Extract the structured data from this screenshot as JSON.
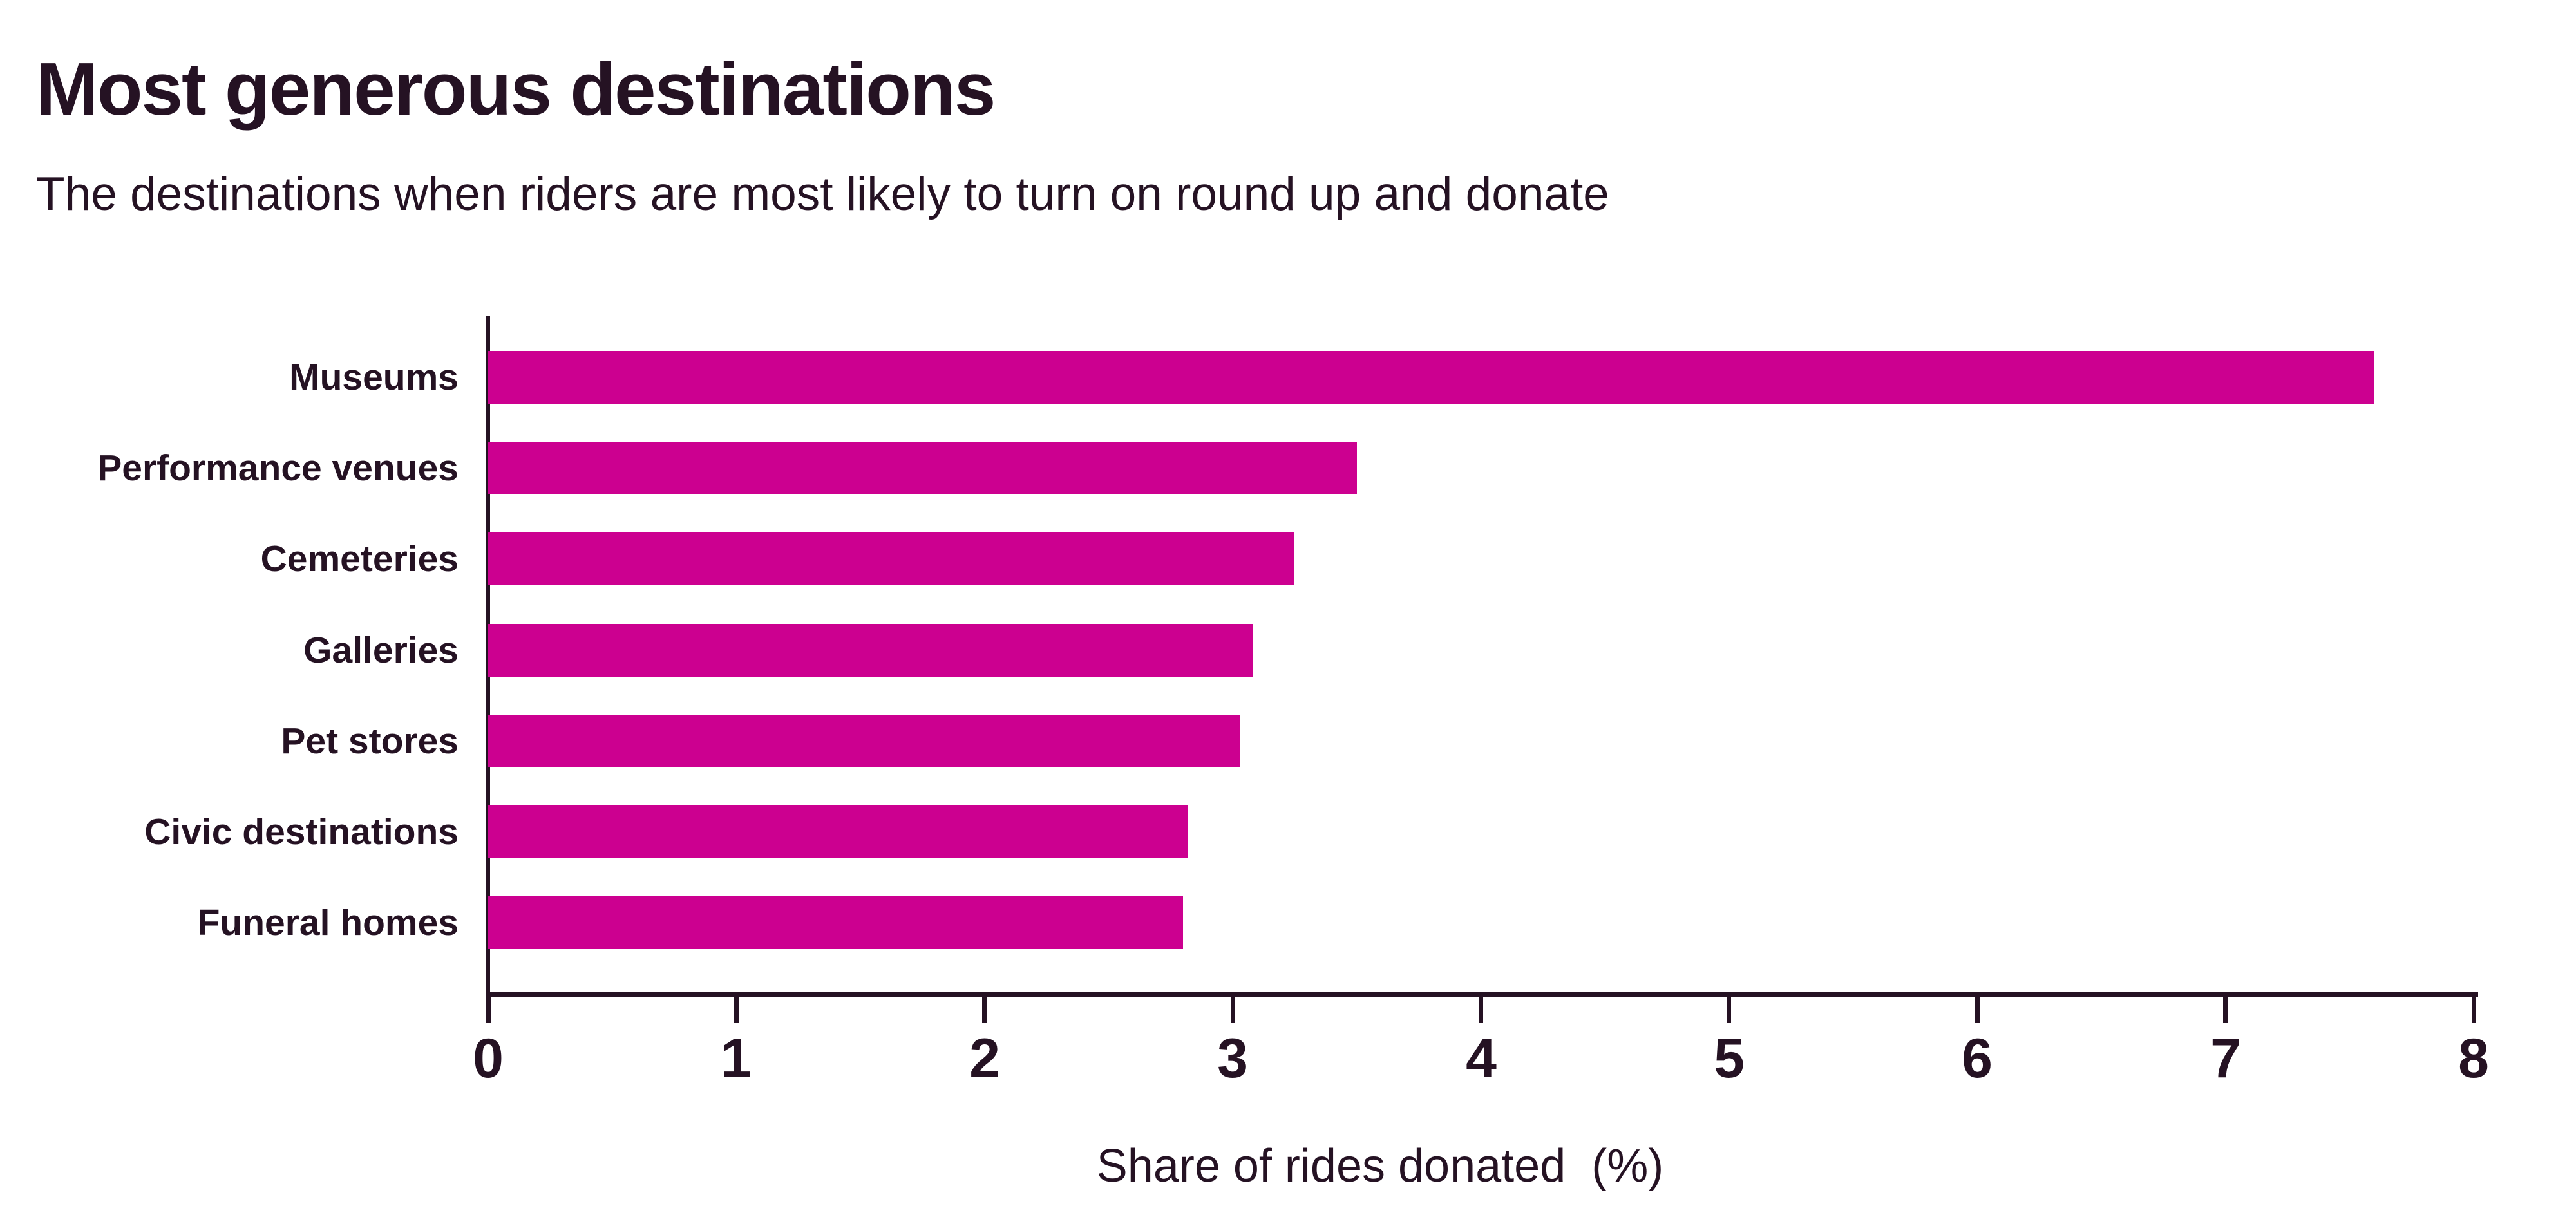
{
  "header": {
    "title": "Most generous destinations",
    "subtitle": "The destinations when riders are most likely to turn on round up and donate"
  },
  "colors": {
    "bar": "#CC0090",
    "text": "#251223",
    "axis": "#251223",
    "background": "#FFFFFF"
  },
  "chart_data": {
    "type": "bar",
    "orientation": "horizontal",
    "title": "Most generous destinations",
    "subtitle": "The destinations when riders are most likely to turn on round up and donate",
    "categories": [
      "Museums",
      "Performance venues",
      "Cemeteries",
      "Galleries",
      "Pet stores",
      "Civic destinations",
      "Funeral homes"
    ],
    "values": [
      7.6,
      3.5,
      3.25,
      3.08,
      3.03,
      2.82,
      2.8
    ],
    "xlabel": "Share of rides donated  (%)",
    "ylabel": "",
    "xlim": [
      0,
      8
    ],
    "xticks": [
      0,
      1,
      2,
      3,
      4,
      5,
      6,
      7,
      8
    ],
    "grid": false,
    "legend": false,
    "bar_color": "#CC0090"
  }
}
